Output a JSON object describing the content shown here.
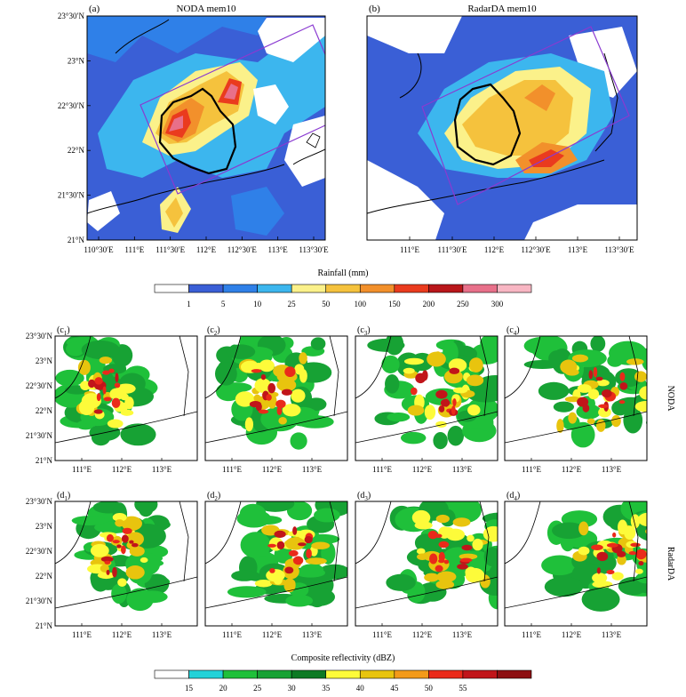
{
  "top_panels": [
    {
      "id": "a",
      "label": "(a)",
      "title": "NODA mem10"
    },
    {
      "id": "b",
      "label": "(b)",
      "title": "RadarDA mem10"
    }
  ],
  "top_axes": {
    "a_x_ticks": [
      "110°30′E",
      "111°E",
      "111°30′E",
      "112°E",
      "112°30′E",
      "113°E",
      "113°30′E"
    ],
    "b_x_ticks": [
      "111°E",
      "111°30′E",
      "112°E",
      "112°30′E",
      "113°E",
      "113°30′E"
    ],
    "y_ticks": [
      "23°30′N",
      "23°N",
      "22°30′N",
      "22°N",
      "21°30′N",
      "21°N"
    ]
  },
  "rain_colorbar": {
    "title": "Rainfall (mm)",
    "ticks": [
      "1",
      "5",
      "10",
      "25",
      "50",
      "100",
      "150",
      "200",
      "250",
      "300"
    ],
    "colors": [
      "#ffffff",
      "#3a5fd6",
      "#2f80e8",
      "#3cb6ee",
      "#fbf18a",
      "#f5c23d",
      "#f2902b",
      "#ea3b1e",
      "#b9171a",
      "#e8708a",
      "#f8b6c3"
    ]
  },
  "rows": [
    {
      "name": "NODA",
      "panels": [
        {
          "base": "c",
          "sub": "1"
        },
        {
          "base": "c",
          "sub": "2"
        },
        {
          "base": "c",
          "sub": "3"
        },
        {
          "base": "c",
          "sub": "4"
        }
      ]
    },
    {
      "name": "RadarDA",
      "panels": [
        {
          "base": "d",
          "sub": "1"
        },
        {
          "base": "d",
          "sub": "2"
        },
        {
          "base": "d",
          "sub": "3"
        },
        {
          "base": "d",
          "sub": "4"
        }
      ]
    }
  ],
  "small_axes": {
    "x_ticks": [
      "111°E",
      "112°E",
      "113°E"
    ],
    "y_ticks": [
      "23°30′N",
      "23°N",
      "22°30′N",
      "22°N",
      "21°30′N",
      "21°N"
    ]
  },
  "refl_colorbar": {
    "title": "Composite reflectivity (dBZ)",
    "ticks": [
      "15",
      "20",
      "25",
      "30",
      "35",
      "40",
      "45",
      "50",
      "55"
    ],
    "colors": [
      "#ffffff",
      "#22d2d8",
      "#1fc03a",
      "#17a234",
      "#0d7a24",
      "#fdfb3a",
      "#e8c40e",
      "#f39a1a",
      "#ea2a1a",
      "#c1151a",
      "#8d0f12"
    ]
  }
}
